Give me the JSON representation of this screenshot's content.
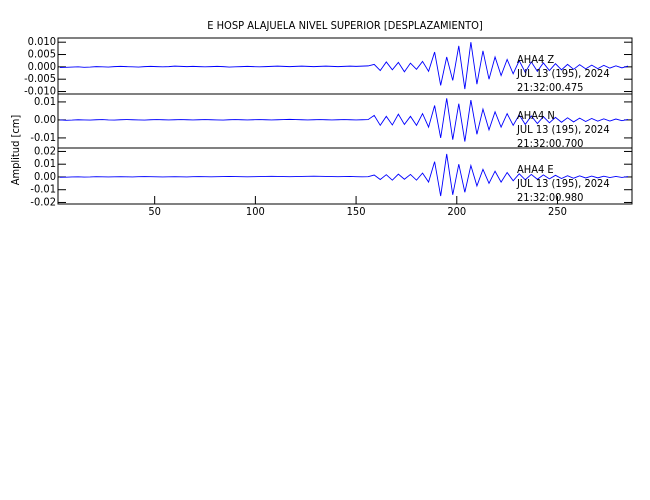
{
  "chart_data": [
    {
      "type": "line",
      "title": "E HOSP ALAJUELA NIVEL SUPERIOR [DESPLAZAMIENTO]",
      "x": [
        3,
        6,
        9,
        12,
        15,
        18,
        21,
        24,
        27,
        30,
        33,
        36,
        39,
        42,
        45,
        48,
        51,
        54,
        57,
        60,
        63,
        66,
        69,
        72,
        75,
        78,
        81,
        84,
        87,
        90,
        93,
        96,
        99,
        102,
        105,
        108,
        111,
        114,
        117,
        120,
        123,
        126,
        129,
        132,
        135,
        138,
        141,
        144,
        147,
        150,
        153,
        156,
        159,
        162,
        165,
        168,
        171,
        174,
        177,
        180,
        183,
        186,
        189,
        192,
        195,
        198,
        201,
        204,
        207,
        210,
        213,
        216,
        219,
        222,
        225,
        228,
        231,
        234,
        237,
        240,
        243,
        246,
        249,
        252,
        255,
        258,
        261,
        264,
        267,
        270,
        273,
        276,
        279,
        282,
        285
      ],
      "series": [
        {
          "name": "AHA4  Z",
          "color": "#0000ff",
          "values": [
            -0.0003,
            -0.0002,
            -0.0001,
            0.0,
            -0.0002,
            -0.0001,
            0.0001,
            0.0,
            -0.0001,
            0.0001,
            0.0002,
            0.0001,
            0.0,
            -0.0001,
            0.0001,
            0.0002,
            0.0001,
            0.0,
            0.0001,
            0.0003,
            0.0002,
            0.0001,
            0.0002,
            0.0001,
            0.0,
            0.0001,
            0.0002,
            0.0001,
            -0.0001,
            0.0,
            0.0001,
            0.0002,
            0.0001,
            0.0,
            0.0001,
            0.0002,
            0.0003,
            0.0002,
            0.0001,
            0.0002,
            0.0003,
            0.0002,
            0.0001,
            0.0002,
            0.0003,
            0.0002,
            0.0001,
            0.0002,
            0.0003,
            0.0002,
            0.0003,
            0.0004,
            0.001,
            -0.0015,
            0.002,
            -0.0012,
            0.0018,
            -0.002,
            0.0015,
            -0.001,
            0.0022,
            -0.0018,
            0.006,
            -0.0075,
            0.004,
            -0.0055,
            0.0085,
            -0.009,
            0.01,
            -0.007,
            0.0065,
            -0.005,
            0.004,
            -0.0035,
            0.003,
            -0.0028,
            0.0025,
            -0.0022,
            0.002,
            -0.0018,
            0.0016,
            -0.0015,
            0.0013,
            -0.0012,
            0.001,
            -0.001,
            0.0009,
            -0.0008,
            0.0007,
            -0.0007,
            0.0006,
            -0.0005,
            0.0004,
            -0.0004,
            0.0003
          ]
        }
      ],
      "annotations": [
        "JUL 13 (195), 2024",
        "21:32:00.475"
      ],
      "xlim": [
        2,
        287
      ],
      "ylim": [
        -0.011,
        0.0117
      ],
      "yticks": [
        {
          "value": 0.01,
          "label": "0.010"
        },
        {
          "value": 0.005,
          "label": "0.005"
        },
        {
          "value": 0,
          "label": "0.000"
        },
        {
          "value": -0.005,
          "label": "-0.005"
        },
        {
          "value": -0.01,
          "label": "-0.010"
        }
      ]
    },
    {
      "type": "line",
      "y_label": "Amplitud [cm]",
      "x": [
        3,
        6,
        9,
        12,
        15,
        18,
        21,
        24,
        27,
        30,
        33,
        36,
        39,
        42,
        45,
        48,
        51,
        54,
        57,
        60,
        63,
        66,
        69,
        72,
        75,
        78,
        81,
        84,
        87,
        90,
        93,
        96,
        99,
        102,
        105,
        108,
        111,
        114,
        117,
        120,
        123,
        126,
        129,
        132,
        135,
        138,
        141,
        144,
        147,
        150,
        153,
        156,
        159,
        162,
        165,
        168,
        171,
        174,
        177,
        180,
        183,
        186,
        189,
        192,
        195,
        198,
        201,
        204,
        207,
        210,
        213,
        216,
        219,
        222,
        225,
        228,
        231,
        234,
        237,
        240,
        243,
        246,
        249,
        252,
        255,
        258,
        261,
        264,
        267,
        270,
        273,
        276,
        279,
        282,
        285
      ],
      "series": [
        {
          "name": "AHA4  N",
          "color": "#0000ff",
          "values": [
            0.0,
            -0.0002,
            -0.0001,
            0.0001,
            0.0,
            -0.0001,
            0.0001,
            0.0002,
            0.0,
            -0.0001,
            0.0001,
            0.0002,
            0.0001,
            0.0,
            -0.0001,
            0.0001,
            0.0002,
            0.0001,
            0.0,
            0.0001,
            0.0002,
            0.0001,
            0.0,
            0.0001,
            0.0002,
            0.0001,
            0.0,
            -0.0001,
            0.0001,
            0.0002,
            0.0001,
            0.0,
            0.0001,
            0.0002,
            0.0001,
            0.0,
            0.0001,
            0.0002,
            0.0003,
            0.0002,
            0.0001,
            0.0,
            0.0001,
            0.0002,
            0.0001,
            0.0,
            0.0001,
            0.0002,
            0.0001,
            0.0,
            0.0001,
            0.0002,
            0.0025,
            -0.003,
            0.002,
            -0.0028,
            0.0032,
            -0.0025,
            0.002,
            -0.003,
            0.0035,
            -0.004,
            0.008,
            -0.01,
            0.012,
            -0.011,
            0.009,
            -0.012,
            0.011,
            -0.008,
            0.006,
            -0.0055,
            0.0045,
            -0.004,
            0.0035,
            -0.003,
            0.0028,
            -0.0025,
            0.0022,
            -0.002,
            0.0018,
            -0.0016,
            0.0014,
            -0.0013,
            0.0012,
            -0.0011,
            0.001,
            -0.0009,
            0.0008,
            -0.0007,
            0.0006,
            -0.0006,
            0.0005,
            -0.0004,
            0.0003
          ]
        }
      ],
      "annotations": [
        "JUL 13 (195), 2024",
        "21:32:00.700"
      ],
      "xlim": [
        2,
        287
      ],
      "ylim": [
        -0.0156,
        0.0144
      ],
      "yticks": [
        0.01,
        {
          "value": 0,
          "label": "0.00"
        },
        -0.01
      ]
    },
    {
      "type": "line",
      "x": [
        3,
        6,
        9,
        12,
        15,
        18,
        21,
        24,
        27,
        30,
        33,
        36,
        39,
        42,
        45,
        48,
        51,
        54,
        57,
        60,
        63,
        66,
        69,
        72,
        75,
        78,
        81,
        84,
        87,
        90,
        93,
        96,
        99,
        102,
        105,
        108,
        111,
        114,
        117,
        120,
        123,
        126,
        129,
        132,
        135,
        138,
        141,
        144,
        147,
        150,
        153,
        156,
        159,
        162,
        165,
        168,
        171,
        174,
        177,
        180,
        183,
        186,
        189,
        192,
        195,
        198,
        201,
        204,
        207,
        210,
        213,
        216,
        219,
        222,
        225,
        228,
        231,
        234,
        237,
        240,
        243,
        246,
        249,
        252,
        255,
        258,
        261,
        264,
        267,
        270,
        273,
        276,
        279,
        282,
        285
      ],
      "series": [
        {
          "name": "AHA4  E",
          "color": "#0000ff",
          "values": [
            -0.0003,
            -0.0002,
            0.0,
            0.0001,
            -0.0001,
            0.0,
            0.0002,
            0.0001,
            0.0,
            0.0001,
            0.0002,
            0.0001,
            0.0,
            0.0002,
            0.0003,
            0.0002,
            0.0001,
            0.0,
            0.0001,
            0.0002,
            0.0001,
            0.0,
            0.0002,
            0.0003,
            0.0002,
            0.0001,
            0.0002,
            0.0003,
            0.0004,
            0.0003,
            0.0002,
            0.0001,
            0.0002,
            0.0003,
            0.0004,
            0.0005,
            0.0004,
            0.0003,
            0.0002,
            0.0003,
            0.0004,
            0.0005,
            0.0006,
            0.0005,
            0.0004,
            0.0003,
            0.0002,
            0.0003,
            0.0004,
            0.0002,
            0.0001,
            0.0002,
            0.0015,
            -0.002,
            0.0018,
            -0.0025,
            0.0022,
            -0.0018,
            0.002,
            -0.0025,
            0.003,
            -0.004,
            0.012,
            -0.015,
            0.018,
            -0.014,
            0.01,
            -0.012,
            0.009,
            -0.007,
            0.006,
            -0.005,
            0.0045,
            -0.004,
            0.0035,
            -0.003,
            0.0025,
            -0.0022,
            0.002,
            -0.0018,
            0.0016,
            -0.0015,
            0.0013,
            -0.0012,
            0.001,
            -0.001,
            0.0009,
            -0.0008,
            0.0007,
            -0.0007,
            0.0006,
            -0.0005,
            0.0004,
            -0.0004,
            0.0003
          ]
        }
      ],
      "annotations": [
        "JUL 13 (195), 2024",
        "21:32:00.980"
      ],
      "xlim": [
        2,
        287
      ],
      "ylim": [
        -0.0212,
        0.0227
      ],
      "yticks": [
        0.02,
        0.01,
        {
          "value": 0,
          "label": "0.00"
        },
        -0.01,
        -0.02
      ],
      "xticks": [
        50,
        100,
        150,
        200,
        250
      ]
    }
  ]
}
